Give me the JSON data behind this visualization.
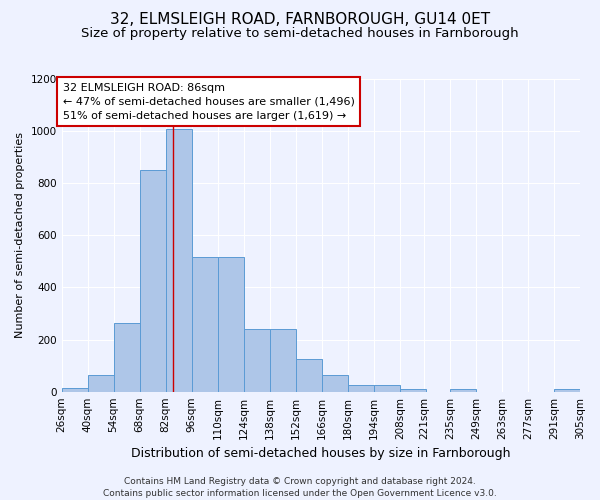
{
  "title": "32, ELMSLEIGH ROAD, FARNBOROUGH, GU14 0ET",
  "subtitle": "Size of property relative to semi-detached houses in Farnborough",
  "xlabel": "Distribution of semi-detached houses by size in Farnborough",
  "ylabel": "Number of semi-detached properties",
  "footer_line1": "Contains HM Land Registry data © Crown copyright and database right 2024.",
  "footer_line2": "Contains public sector information licensed under the Open Government Licence v3.0.",
  "annotation_title": "32 ELMSLEIGH ROAD: 86sqm",
  "annotation_line1": "← 47% of semi-detached houses are smaller (1,496)",
  "annotation_line2": "51% of semi-detached houses are larger (1,619) →",
  "property_size": 86,
  "bin_edges": [
    26,
    40,
    54,
    68,
    82,
    96,
    110,
    124,
    138,
    152,
    166,
    180,
    194,
    208,
    221,
    235,
    249,
    263,
    277,
    291,
    305
  ],
  "bin_labels": [
    "26sqm",
    "40sqm",
    "54sqm",
    "68sqm",
    "82sqm",
    "96sqm",
    "110sqm",
    "124sqm",
    "138sqm",
    "152sqm",
    "166sqm",
    "180sqm",
    "194sqm",
    "208sqm",
    "221sqm",
    "235sqm",
    "249sqm",
    "263sqm",
    "277sqm",
    "291sqm",
    "305sqm"
  ],
  "counts": [
    15,
    65,
    265,
    850,
    1010,
    515,
    515,
    240,
    240,
    125,
    65,
    25,
    25,
    10,
    0,
    10,
    0,
    0,
    0,
    10,
    0
  ],
  "bar_color": "#aec6e8",
  "bar_edge_color": "#5b9bd5",
  "vline_color": "#cc0000",
  "vline_x": 86,
  "ylim": [
    0,
    1200
  ],
  "yticks": [
    0,
    200,
    400,
    600,
    800,
    1000,
    1200
  ],
  "background_color": "#eef2ff",
  "grid_color": "#ffffff",
  "annotation_box_color": "#ffffff",
  "annotation_box_edge": "#cc0000",
  "title_fontsize": 11,
  "subtitle_fontsize": 9.5,
  "xlabel_fontsize": 9,
  "ylabel_fontsize": 8,
  "tick_fontsize": 7.5,
  "annotation_fontsize": 8,
  "footer_fontsize": 6.5
}
